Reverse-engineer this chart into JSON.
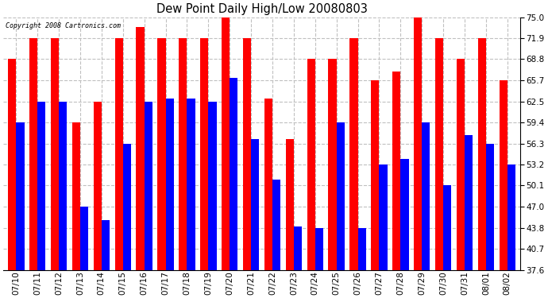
{
  "title": "Dew Point Daily High/Low 20080803",
  "copyright": "Copyright 2008 Cartronics.com",
  "dates": [
    "07/10",
    "07/11",
    "07/12",
    "07/13",
    "07/14",
    "07/15",
    "07/16",
    "07/17",
    "07/18",
    "07/19",
    "07/20",
    "07/21",
    "07/22",
    "07/23",
    "07/24",
    "07/25",
    "07/26",
    "07/27",
    "07/28",
    "07/29",
    "07/30",
    "07/31",
    "08/01",
    "08/02"
  ],
  "high": [
    68.8,
    71.9,
    71.9,
    59.4,
    62.5,
    71.9,
    73.5,
    71.9,
    71.9,
    71.9,
    75.0,
    71.9,
    63.0,
    57.0,
    68.8,
    68.8,
    71.9,
    65.7,
    67.0,
    75.0,
    71.9,
    68.8,
    71.9,
    65.7
  ],
  "low": [
    59.4,
    62.5,
    62.5,
    47.0,
    45.0,
    56.3,
    62.5,
    63.0,
    63.0,
    62.5,
    66.0,
    57.0,
    51.0,
    44.0,
    43.8,
    59.4,
    43.8,
    53.2,
    54.0,
    59.4,
    50.1,
    57.5,
    56.3,
    53.2
  ],
  "high_color": "#ff0000",
  "low_color": "#0000ff",
  "background_color": "#ffffff",
  "grid_color": "#c0c0c0",
  "yticks": [
    37.6,
    40.7,
    43.8,
    47.0,
    50.1,
    53.2,
    56.3,
    59.4,
    62.5,
    65.7,
    68.8,
    71.9,
    75.0
  ],
  "ymin": 37.6,
  "ymax": 75.0,
  "bar_width": 0.38
}
